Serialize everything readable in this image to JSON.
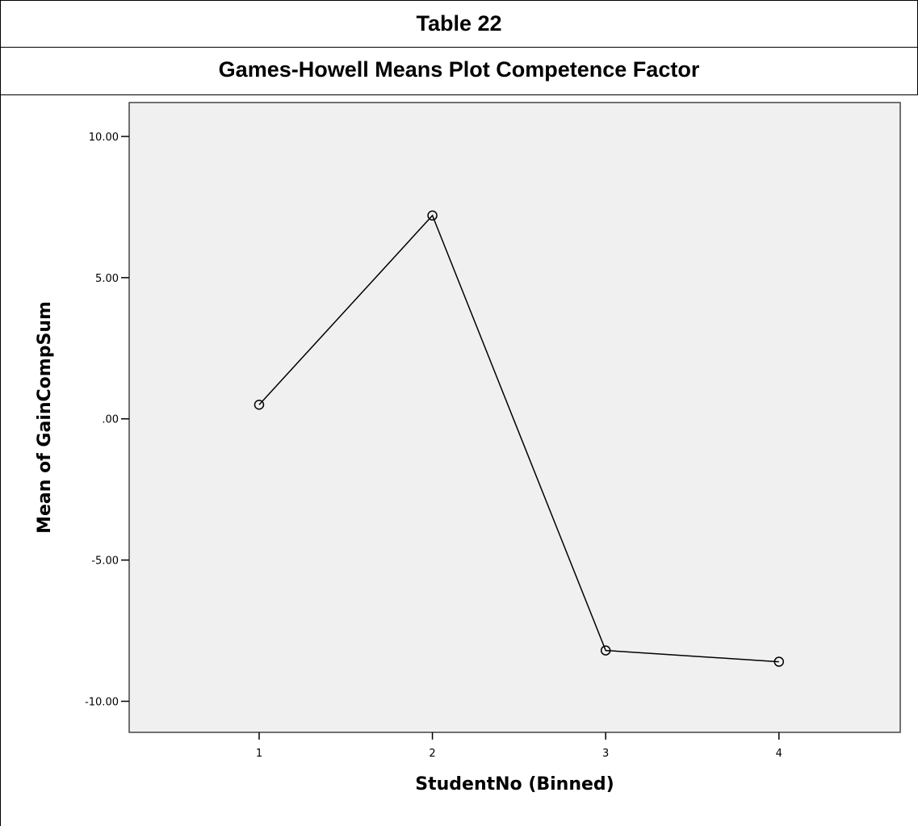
{
  "table": {
    "title": "Table 22",
    "subtitle": "Games-Howell Means Plot Competence Factor"
  },
  "chart_data": {
    "type": "line",
    "title": "",
    "xlabel": "StudentNo (Binned)",
    "ylabel": "Mean of GainCompSum",
    "x": [
      1,
      2,
      3,
      4
    ],
    "x_tick_labels": [
      "1",
      "2",
      "3",
      "4"
    ],
    "values": [
      0.5,
      7.2,
      -8.2,
      -8.6
    ],
    "yticks": [
      10,
      5,
      0,
      -5,
      -10
    ],
    "y_tick_labels": [
      "10.00",
      "5.00",
      ".00",
      "-5.00",
      "-10.00"
    ],
    "ylim": [
      -11.1,
      11.2
    ],
    "xlim": [
      0.25,
      4.7
    ],
    "grid": false,
    "marker": "open-circle",
    "colors": {
      "line": "#000000",
      "plot_bg": "#f0f0f0",
      "frame": "#444444"
    }
  }
}
